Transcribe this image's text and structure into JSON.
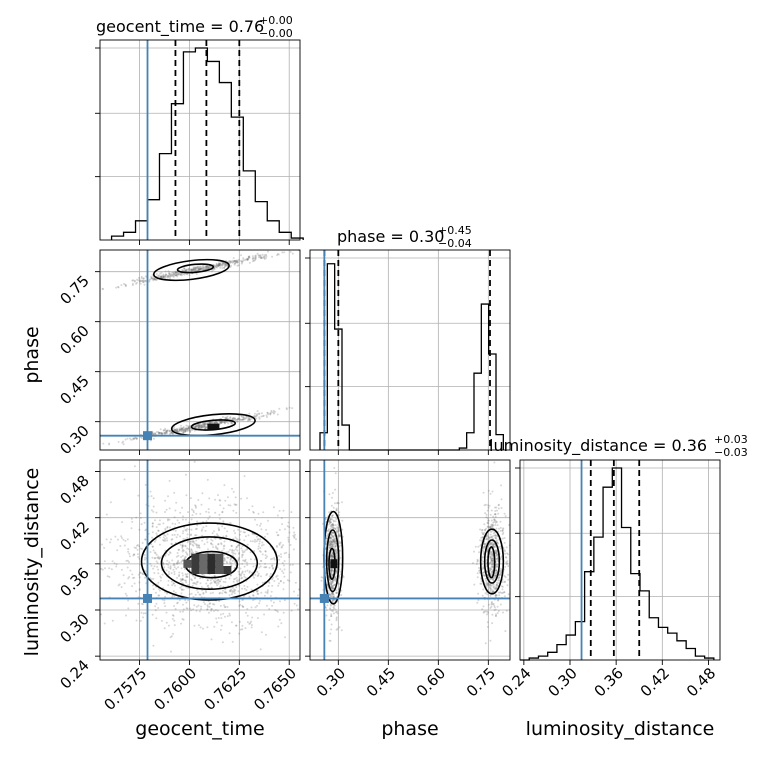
{
  "chart_data": {
    "type": "corner",
    "parameters": [
      "geocent_time",
      "phase",
      "luminosity_distance"
    ],
    "titles": {
      "geocent_time": {
        "prefix": "geocent_time = 0.76",
        "sup": "+0.00",
        "sub": "−0.00"
      },
      "phase": {
        "prefix": "phase = 0.30",
        "sup": "+0.45",
        "sub": "−0.04"
      },
      "luminosity_distance": {
        "prefix": "luminosity_distance = 0.36",
        "sup": "+0.03",
        "sub": "−0.03"
      }
    },
    "axis_labels": {
      "geocent_time": "geocent_time",
      "phase": "phase",
      "luminosity_distance": "luminosity_distance"
    },
    "ranges": {
      "geocent_time": [
        0.75552,
        0.76554
      ],
      "phase": [
        0.215,
        0.815
      ],
      "luminosity_distance": [
        0.235,
        0.495
      ]
    },
    "ticks": {
      "geocent_time": {
        "values": [
          0.7575,
          0.76,
          0.7625,
          0.765
        ],
        "labels": [
          "0.7575",
          "0.7600",
          "0.7625",
          "0.7650"
        ]
      },
      "phase": {
        "values": [
          0.3,
          0.45,
          0.6,
          0.75
        ],
        "labels": [
          "0.30",
          "0.45",
          "0.60",
          "0.75"
        ]
      },
      "luminosity_distance": {
        "values": [
          0.24,
          0.3,
          0.36,
          0.42,
          0.48
        ],
        "labels": [
          "0.24",
          "0.30",
          "0.36",
          "0.42",
          "0.48"
        ]
      }
    },
    "truths": {
      "geocent_time": 0.7579,
      "phase": 0.258,
      "luminosity_distance": 0.315
    },
    "quantiles": {
      "geocent_time": [
        0.7593,
        0.76085,
        0.7625
      ],
      "phase": [
        0.258,
        0.3,
        0.755
      ],
      "luminosity_distance": [
        0.327,
        0.357,
        0.39
      ]
    },
    "histograms": {
      "geocent_time": {
        "edges": [
          0.7561,
          0.7567,
          0.7573,
          0.7579,
          0.7585,
          0.7591,
          0.7597,
          0.7603,
          0.7609,
          0.7615,
          0.7621,
          0.7627,
          0.7633,
          0.7639,
          0.7645,
          0.7651,
          0.7657
        ],
        "counts": [
          0.02,
          0.04,
          0.1,
          0.21,
          0.45,
          0.71,
          0.98,
          1.0,
          0.93,
          0.82,
          0.64,
          0.36,
          0.2,
          0.1,
          0.04,
          0.01
        ]
      },
      "phase": {
        "edges": [
          0.245,
          0.267,
          0.289,
          0.311,
          0.333,
          0.355,
          0.377,
          0.399,
          0.421,
          0.443,
          0.465,
          0.487,
          0.509,
          0.531,
          0.553,
          0.575,
          0.597,
          0.619,
          0.641,
          0.663,
          0.685,
          0.707,
          0.729,
          0.751,
          0.773,
          0.795
        ],
        "counts": [
          0.09,
          0.97,
          0.63,
          0.13,
          0.0,
          0.0,
          0.0,
          0.0,
          0.0,
          0.0,
          0.0,
          0.0,
          0.0,
          0.0,
          0.0,
          0.0,
          0.0,
          0.0,
          0.0,
          0.01,
          0.09,
          0.4,
          0.76,
          0.5,
          0.08
        ]
      },
      "luminosity_distance": {
        "edges": [
          0.235,
          0.247,
          0.259,
          0.271,
          0.283,
          0.295,
          0.307,
          0.319,
          0.331,
          0.343,
          0.355,
          0.367,
          0.379,
          0.391,
          0.403,
          0.415,
          0.427,
          0.439,
          0.451,
          0.463,
          0.475,
          0.487
        ],
        "counts": [
          0.0,
          0.01,
          0.02,
          0.04,
          0.08,
          0.13,
          0.2,
          0.46,
          0.64,
          0.9,
          1.0,
          0.69,
          0.45,
          0.36,
          0.22,
          0.17,
          0.14,
          0.1,
          0.06,
          0.02,
          0.01
        ]
      }
    },
    "kde": {
      "phase_vs_geocent_time": {
        "ridges": [
          {
            "x": [
              0.7558,
              0.7652
            ],
            "y": [
              0.7,
              0.815
            ]
          },
          {
            "x": [
              0.7556,
              0.7655
            ],
            "y": [
              0.233,
              0.34
            ]
          }
        ],
        "contours": [
          {
            "cx": 0.7601,
            "cy": 0.755,
            "rx": 0.0019,
            "ry": 0.028,
            "angle": -7
          },
          {
            "cx": 0.7603,
            "cy": 0.76,
            "rx": 0.0009,
            "ry": 0.012,
            "angle": -5
          },
          {
            "cx": 0.7612,
            "cy": 0.291,
            "rx": 0.0021,
            "ry": 0.03,
            "angle": -6
          },
          {
            "cx": 0.7612,
            "cy": 0.29,
            "rx": 0.0011,
            "ry": 0.014,
            "angle": -5
          }
        ]
      },
      "luminosity_distance_vs_geocent_time": {
        "scatter_center": [
          0.761,
          0.36
        ],
        "scatter_spread": [
          0.0025,
          0.04
        ],
        "contours": [
          {
            "cx": 0.761,
            "cy": 0.363,
            "rx": 0.0034,
            "ry": 0.05
          },
          {
            "cx": 0.761,
            "cy": 0.361,
            "rx": 0.0024,
            "ry": 0.034
          },
          {
            "cx": 0.7611,
            "cy": 0.359,
            "rx": 0.0013,
            "ry": 0.017
          }
        ],
        "dense": [
          [
            0.7599,
            0.36
          ],
          [
            0.7603,
            0.36
          ],
          [
            0.7607,
            0.36
          ],
          [
            0.7611,
            0.36
          ],
          [
            0.7615,
            0.36
          ],
          [
            0.7603,
            0.352
          ],
          [
            0.7607,
            0.352
          ],
          [
            0.7611,
            0.352
          ],
          [
            0.7615,
            0.352
          ],
          [
            0.7619,
            0.352
          ],
          [
            0.7607,
            0.368
          ],
          [
            0.7611,
            0.368
          ],
          [
            0.7615,
            0.368
          ],
          [
            0.7603,
            0.368
          ]
        ]
      },
      "luminosity_distance_vs_phase": {
        "contours": [
          {
            "cx": 0.285,
            "cy": 0.368,
            "rx": 0.028,
            "ry": 0.06
          },
          {
            "cx": 0.283,
            "cy": 0.364,
            "rx": 0.018,
            "ry": 0.04
          },
          {
            "cx": 0.281,
            "cy": 0.36,
            "rx": 0.009,
            "ry": 0.02
          },
          {
            "cx": 0.761,
            "cy": 0.363,
            "rx": 0.034,
            "ry": 0.042
          },
          {
            "cx": 0.761,
            "cy": 0.363,
            "rx": 0.022,
            "ry": 0.028
          },
          {
            "cx": 0.759,
            "cy": 0.362,
            "rx": 0.01,
            "ry": 0.02
          }
        ]
      }
    }
  }
}
